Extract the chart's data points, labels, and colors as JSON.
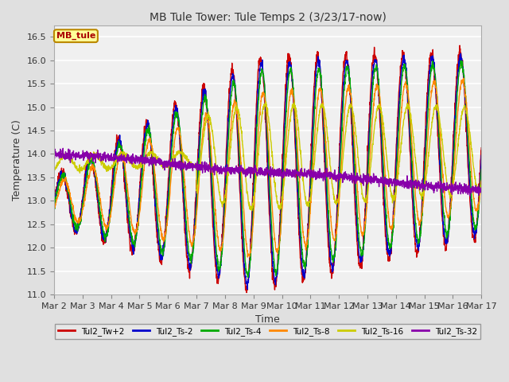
{
  "title": "MB Tule Tower: Tule Temps 2 (3/23/17-now)",
  "xlabel": "Time",
  "ylabel": "Temperature (C)",
  "ylim": [
    11.0,
    16.75
  ],
  "yticks": [
    11.0,
    11.5,
    12.0,
    12.5,
    13.0,
    13.5,
    14.0,
    14.5,
    15.0,
    15.5,
    16.0,
    16.5
  ],
  "x_labels": [
    "Mar 2",
    "Mar 3",
    "Mar 4",
    "Mar 5",
    "Mar 6",
    "Mar 7",
    "Mar 8",
    "Mar 9",
    "Mar 10",
    "Mar 11",
    "Mar 12",
    "Mar 13",
    "Mar 14",
    "Mar 15",
    "Mar 16",
    "Mar 17"
  ],
  "legend_label": "MB_tule",
  "legend_bg": "#FFFF99",
  "legend_border": "#BB8800",
  "lines": [
    {
      "label": "Tul2_Tw+2",
      "color": "#CC0000"
    },
    {
      "label": "Tul2_Ts-2",
      "color": "#0000CC"
    },
    {
      "label": "Tul2_Ts-4",
      "color": "#00AA00"
    },
    {
      "label": "Tul2_Ts-8",
      "color": "#FF8800"
    },
    {
      "label": "Tul2_Ts-16",
      "color": "#CCCC00"
    },
    {
      "label": "Tul2_Ts-32",
      "color": "#8800AA"
    }
  ],
  "background_color": "#E0E0E0",
  "plot_bg": "#F0F0F0",
  "grid_color": "#FFFFFF"
}
